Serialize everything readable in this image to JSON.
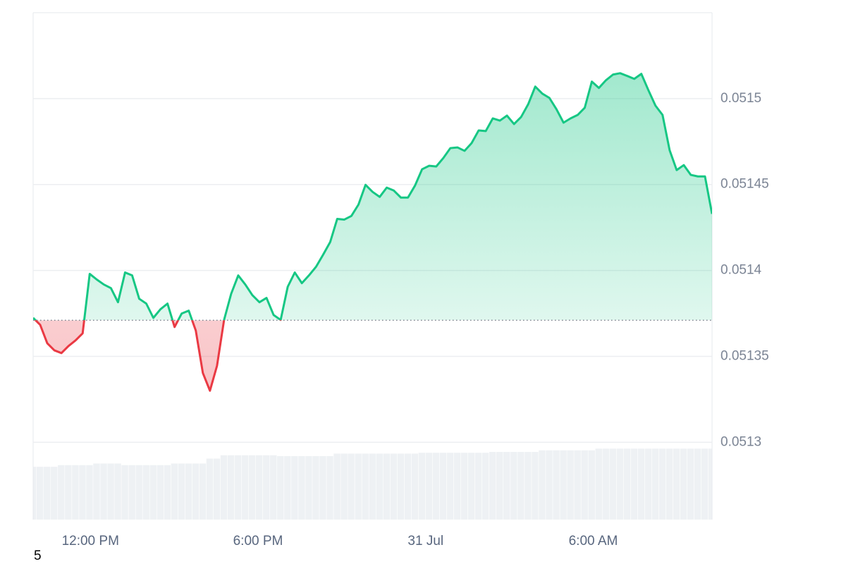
{
  "chart_data": {
    "type": "line",
    "color": "#16c784",
    "below_color": "#ea3943",
    "baseline": 0.051371,
    "values": [
      0.0513724,
      0.0513683,
      0.0513576,
      0.0513535,
      0.0513519,
      0.051356,
      0.0513593,
      0.0513634,
      0.051398,
      0.0513947,
      0.0513918,
      0.0513897,
      0.0513815,
      0.0513988,
      0.0513971,
      0.0513835,
      0.0513807,
      0.0513724,
      0.0513774,
      0.0513807,
      0.0513671,
      0.0513749,
      0.0513766,
      0.051365,
      0.0513403,
      0.05133,
      0.0513445,
      0.0513712,
      0.0513864,
      0.0513971,
      0.0513918,
      0.0513856,
      0.0513815,
      0.051384,
      0.0513741,
      0.0513712,
      0.0513905,
      0.0513988,
      0.0513926,
      0.0513971,
      0.0514021,
      0.0514091,
      0.0514165,
      0.05143,
      0.0514296,
      0.0514317,
      0.0514383,
      0.0514498,
      0.0514457,
      0.0514428,
      0.0514482,
      0.0514465,
      0.0514424,
      0.0514424,
      0.0514494,
      0.0514589,
      0.0514609,
      0.0514605,
      0.0514654,
      0.0514712,
      0.0514716,
      0.0514696,
      0.0514741,
      0.0514815,
      0.0514811,
      0.0514885,
      0.0514872,
      0.0514901,
      0.0514852,
      0.0514893,
      0.0514967,
      0.051507,
      0.0515029,
      0.0515004,
      0.0514938,
      0.051486,
      0.0514885,
      0.0514905,
      0.0514947,
      0.0515099,
      0.0515062,
      0.0515107,
      0.051514,
      0.0515148,
      0.0515132,
      0.0515115,
      0.0515144,
      0.0515049,
      0.0514959,
      0.0514905,
      0.05147,
      0.0514584,
      0.0514613,
      0.0514556,
      0.0514547,
      0.0514547,
      0.0514329
    ],
    "xlim": [
      0,
      96
    ],
    "xticks": [
      {
        "value": 8.1,
        "label": "12:00 PM"
      },
      {
        "value": 31.8,
        "label": "6:00 PM"
      },
      {
        "value": 55.5,
        "label": "31 Jul"
      },
      {
        "value": 79.2,
        "label": "6:00 AM"
      }
    ],
    "ylim": [
      0.051255,
      0.05155
    ],
    "yticks": [
      0.0513,
      0.05135,
      0.0514,
      0.05145,
      0.0515
    ],
    "grid": true,
    "volume": {
      "color": "#eef1f4",
      "ylim": [
        0,
        100
      ],
      "values": [
        64,
        64,
        64,
        64,
        66,
        66,
        66,
        66,
        66,
        68,
        68,
        68,
        68,
        66,
        66,
        66,
        66,
        66,
        66,
        66,
        68,
        68,
        68,
        68,
        68,
        74,
        74,
        78,
        78,
        78,
        78,
        78,
        78,
        78,
        78,
        77,
        77,
        77,
        77,
        77,
        77,
        77,
        77,
        80,
        80,
        80,
        80,
        80,
        80,
        80,
        80,
        80,
        80,
        80,
        80,
        81,
        81,
        81,
        81,
        81,
        81,
        81,
        81,
        81,
        81,
        82,
        82,
        82,
        82,
        82,
        82,
        82,
        84,
        84,
        84,
        84,
        84,
        84,
        84,
        84,
        86,
        86,
        86,
        86,
        86,
        86,
        86,
        86,
        86,
        86,
        86,
        86,
        86,
        86,
        86,
        86,
        86
      ]
    },
    "footnote": "5"
  }
}
